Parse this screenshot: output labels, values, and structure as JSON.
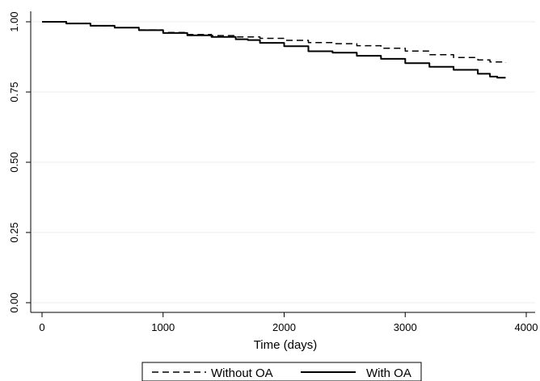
{
  "chart_data": {
    "type": "line",
    "xlabel": "Time (days)",
    "ylabel": "",
    "xlim": [
      0,
      4000
    ],
    "ylim": [
      0,
      1
    ],
    "x_ticks": [
      0,
      1000,
      2000,
      3000,
      4000
    ],
    "x_tick_labels": [
      "0",
      "1000",
      "2000",
      "3000",
      "4000"
    ],
    "y_ticks": [
      0,
      0.25,
      0.5,
      0.75,
      1.0
    ],
    "y_tick_labels": [
      "0.00",
      "0.25",
      "0.50",
      "0.75",
      "1.00"
    ],
    "grid": "horizontal",
    "legend_position": "bottom",
    "series": [
      {
        "name": "Without OA",
        "style": "dashed",
        "color": "#000000",
        "x": [
          0,
          200,
          400,
          600,
          800,
          1000,
          1200,
          1400,
          1600,
          1800,
          2000,
          2200,
          2400,
          2600,
          2800,
          3000,
          3200,
          3400,
          3600,
          3700,
          3830
        ],
        "y": [
          1.0,
          0.994,
          0.986,
          0.979,
          0.971,
          0.962,
          0.955,
          0.951,
          0.946,
          0.941,
          0.934,
          0.926,
          0.922,
          0.915,
          0.906,
          0.896,
          0.883,
          0.873,
          0.864,
          0.857,
          0.854
        ]
      },
      {
        "name": "With OA",
        "style": "solid",
        "color": "#000000",
        "x": [
          0,
          200,
          400,
          600,
          800,
          1000,
          1200,
          1400,
          1600,
          1700,
          1800,
          2000,
          2200,
          2400,
          2600,
          2800,
          3000,
          3200,
          3400,
          3600,
          3700,
          3760,
          3830
        ],
        "y": [
          1.0,
          0.994,
          0.986,
          0.979,
          0.97,
          0.96,
          0.952,
          0.946,
          0.938,
          0.935,
          0.925,
          0.913,
          0.895,
          0.89,
          0.879,
          0.868,
          0.853,
          0.84,
          0.829,
          0.815,
          0.805,
          0.801,
          0.801
        ]
      }
    ]
  }
}
